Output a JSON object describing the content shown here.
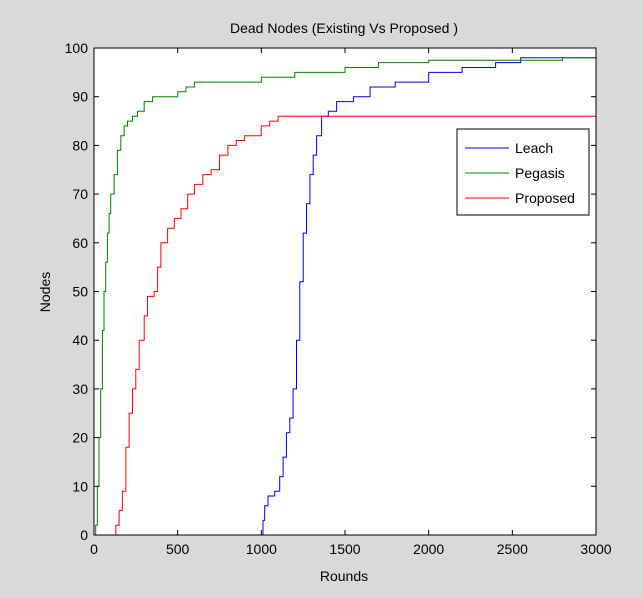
{
  "chart_data": {
    "type": "line",
    "title": "Dead Nodes (Existing Vs Proposed )",
    "xlabel": "Rounds",
    "ylabel": "Nodes",
    "xlim": [
      0,
      3000
    ],
    "ylim": [
      0,
      100
    ],
    "xticks": [
      0,
      500,
      1000,
      1500,
      2000,
      2500,
      3000
    ],
    "yticks": [
      0,
      10,
      20,
      30,
      40,
      50,
      60,
      70,
      80,
      90,
      100
    ],
    "grid": false,
    "legend_position": "top-right",
    "series": [
      {
        "name": "Leach",
        "color": "#0000ff",
        "points": [
          [
            0,
            0
          ],
          [
            1000,
            0
          ],
          [
            1010,
            3
          ],
          [
            1020,
            6
          ],
          [
            1040,
            8
          ],
          [
            1080,
            9
          ],
          [
            1110,
            12
          ],
          [
            1130,
            16
          ],
          [
            1150,
            21
          ],
          [
            1170,
            24
          ],
          [
            1190,
            30
          ],
          [
            1210,
            40
          ],
          [
            1230,
            52
          ],
          [
            1250,
            62
          ],
          [
            1270,
            68
          ],
          [
            1290,
            74
          ],
          [
            1310,
            78
          ],
          [
            1330,
            82
          ],
          [
            1360,
            86
          ],
          [
            1400,
            87
          ],
          [
            1450,
            89
          ],
          [
            1550,
            90
          ],
          [
            1650,
            92
          ],
          [
            1800,
            93
          ],
          [
            2000,
            95
          ],
          [
            2200,
            96
          ],
          [
            2400,
            97
          ],
          [
            2550,
            98
          ],
          [
            3000,
            98
          ]
        ]
      },
      {
        "name": "Pegasis",
        "color": "#008000",
        "points": [
          [
            0,
            0
          ],
          [
            10,
            2
          ],
          [
            20,
            10
          ],
          [
            30,
            20
          ],
          [
            40,
            30
          ],
          [
            50,
            42
          ],
          [
            60,
            50
          ],
          [
            70,
            56
          ],
          [
            80,
            62
          ],
          [
            90,
            66
          ],
          [
            100,
            70
          ],
          [
            120,
            74
          ],
          [
            140,
            79
          ],
          [
            160,
            82
          ],
          [
            180,
            84
          ],
          [
            200,
            85
          ],
          [
            230,
            86
          ],
          [
            260,
            87
          ],
          [
            300,
            89
          ],
          [
            350,
            90
          ],
          [
            500,
            91
          ],
          [
            550,
            92
          ],
          [
            600,
            93
          ],
          [
            1000,
            94
          ],
          [
            1200,
            95
          ],
          [
            1500,
            96
          ],
          [
            1700,
            97
          ],
          [
            2000,
            97.5
          ],
          [
            2800,
            98
          ],
          [
            3000,
            98
          ]
        ]
      },
      {
        "name": "Proposed",
        "color": "#ff0000",
        "points": [
          [
            0,
            0
          ],
          [
            100,
            0
          ],
          [
            130,
            2
          ],
          [
            150,
            5
          ],
          [
            170,
            9
          ],
          [
            190,
            18
          ],
          [
            210,
            25
          ],
          [
            230,
            30
          ],
          [
            250,
            34
          ],
          [
            270,
            40
          ],
          [
            300,
            45
          ],
          [
            320,
            49
          ],
          [
            360,
            50
          ],
          [
            380,
            55
          ],
          [
            400,
            60
          ],
          [
            440,
            63
          ],
          [
            480,
            65
          ],
          [
            520,
            67
          ],
          [
            560,
            70
          ],
          [
            600,
            72
          ],
          [
            650,
            74
          ],
          [
            700,
            75
          ],
          [
            750,
            78
          ],
          [
            800,
            80
          ],
          [
            850,
            81
          ],
          [
            900,
            82
          ],
          [
            950,
            82
          ],
          [
            1000,
            84
          ],
          [
            1050,
            85
          ],
          [
            1100,
            86
          ],
          [
            3000,
            86
          ]
        ]
      }
    ]
  }
}
